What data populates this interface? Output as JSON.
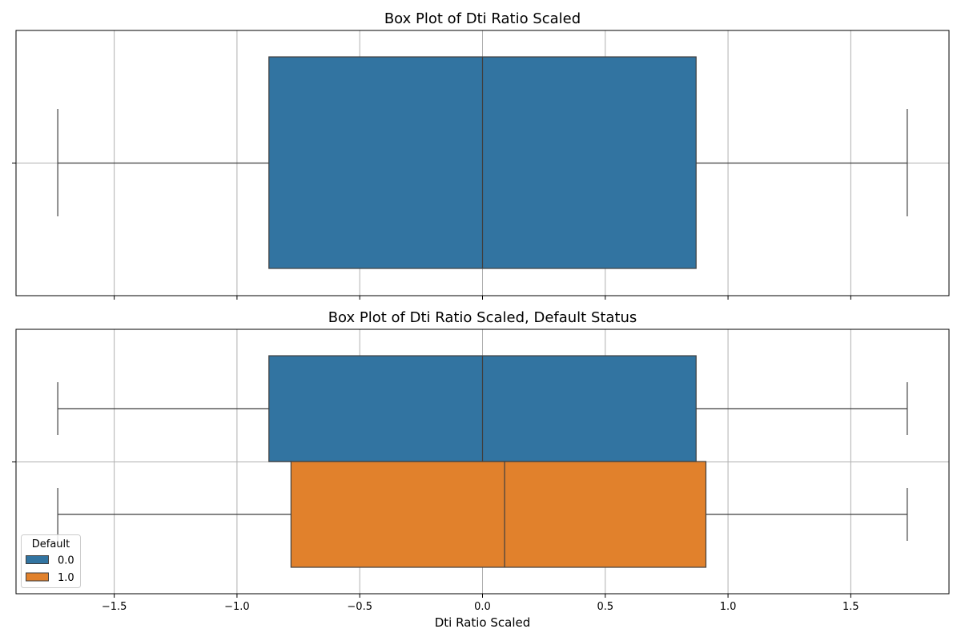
{
  "chart_data": [
    {
      "type": "box",
      "title": "Box Plot of Dti Ratio Scaled",
      "xlabel": "",
      "ylabel": "",
      "xlim": [
        -1.9,
        1.9
      ],
      "x_ticks": [
        -1.5,
        -1.0,
        -0.5,
        0.0,
        0.5,
        1.0,
        1.5
      ],
      "x_tick_labels_shown": false,
      "grid": true,
      "series": [
        {
          "whisker_low": -1.73,
          "q1": -0.87,
          "median": 0.0,
          "q3": 0.87,
          "whisker_high": 1.73,
          "color": "#3274a1"
        }
      ]
    },
    {
      "type": "box",
      "title": "Box Plot of Dti Ratio Scaled, Default Status",
      "xlabel": "Dti Ratio Scaled",
      "ylabel": "",
      "xlim": [
        -1.9,
        1.9
      ],
      "x_ticks": [
        -1.5,
        -1.0,
        -0.5,
        0.0,
        0.5,
        1.0,
        1.5
      ],
      "x_tick_labels": [
        "−1.5",
        "−1.0",
        "−0.5",
        "0.0",
        "0.5",
        "1.0",
        "1.5"
      ],
      "grid": true,
      "legend": {
        "title": "Default",
        "position": "lower-left"
      },
      "series": [
        {
          "name": "0.0",
          "whisker_low": -1.73,
          "q1": -0.87,
          "median": 0.0,
          "q3": 0.87,
          "whisker_high": 1.73,
          "color": "#3274a1"
        },
        {
          "name": "1.0",
          "whisker_low": -1.73,
          "q1": -0.78,
          "median": 0.09,
          "q3": 0.91,
          "whisker_high": 1.73,
          "color": "#e1812c"
        }
      ]
    }
  ]
}
